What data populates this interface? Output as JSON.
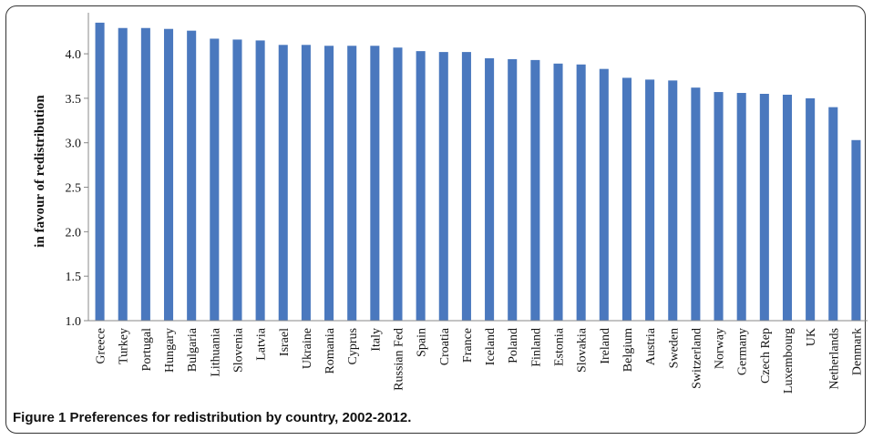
{
  "caption": {
    "label": "Figure 1",
    "text": "Preferences for redistribution by country, 2002-2012."
  },
  "colors": {
    "bar": "#4a78be",
    "axis": "#888888"
  },
  "chart_data": {
    "type": "bar",
    "title": "",
    "xlabel": "",
    "ylabel": "in favour of redistribution",
    "ylim": [
      1.0,
      4.4
    ],
    "yticks": [
      "1.0",
      "1.5",
      "2.0",
      "2.5",
      "3.0",
      "3.5",
      "4.0"
    ],
    "grid": false,
    "categories": [
      "Greece",
      "Turkey",
      "Portugal",
      "Hungary",
      "Bulgaria",
      "Lithuania",
      "Slovenia",
      "Latvia",
      "Israel",
      "Ukraine",
      "Romania",
      "Cyprus",
      "Italy",
      "Russian Fed",
      "Spain",
      "Croatia",
      "France",
      "Iceland",
      "Poland",
      "Finland",
      "Estonia",
      "Slovakia",
      "Ireland",
      "Belgium",
      "Austria",
      "Sweden",
      "Switzerland",
      "Norway",
      "Germany",
      "Czech Rep",
      "Luxembourg",
      "UK",
      "Netherlands",
      "Denmark"
    ],
    "values": [
      4.35,
      4.29,
      4.29,
      4.28,
      4.26,
      4.17,
      4.16,
      4.15,
      4.1,
      4.1,
      4.09,
      4.09,
      4.09,
      4.07,
      4.03,
      4.02,
      4.02,
      3.95,
      3.94,
      3.93,
      3.89,
      3.88,
      3.83,
      3.73,
      3.71,
      3.7,
      3.62,
      3.57,
      3.56,
      3.55,
      3.54,
      3.5,
      3.4,
      3.03
    ]
  }
}
